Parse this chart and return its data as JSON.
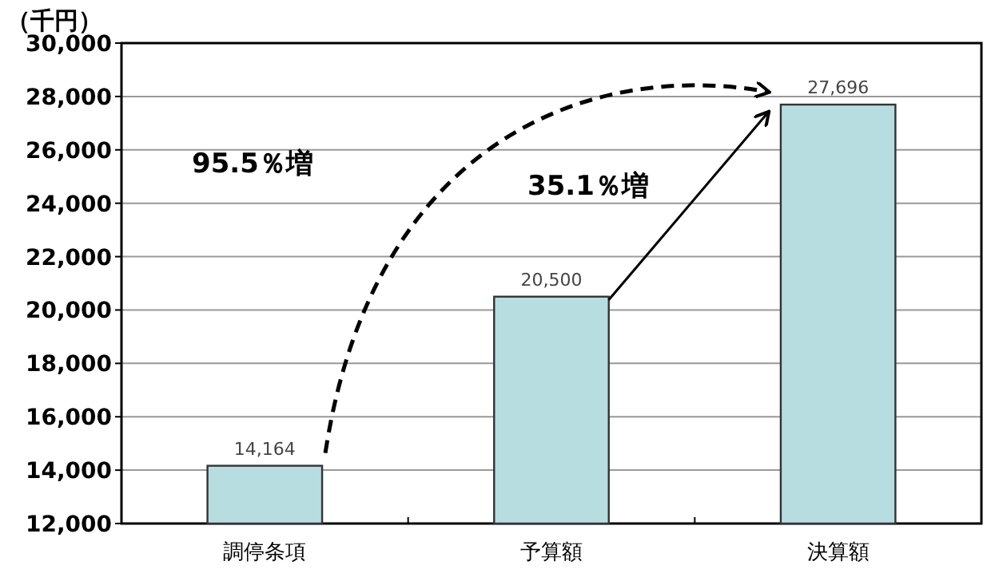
{
  "chart_data": {
    "type": "bar",
    "ylabel": "（千円）",
    "categories": [
      "調停条項",
      "予算額",
      "決算額"
    ],
    "values": [
      14164,
      20500,
      27696
    ],
    "color": "#b7dde0",
    "value_labels": [
      "14,164",
      "20,500",
      "27,696"
    ],
    "ylim": [
      12000,
      30000
    ],
    "yticks": [
      {
        "value": 12000,
        "label": "12,000"
      },
      {
        "value": 14000,
        "label": "14,000"
      },
      {
        "value": 16000,
        "label": "16,000"
      },
      {
        "value": 18000,
        "label": "18,000"
      },
      {
        "value": 20000,
        "label": "20,000"
      },
      {
        "value": 22000,
        "label": "22,000"
      },
      {
        "value": 24000,
        "label": "24,000"
      },
      {
        "value": 26000,
        "label": "26,000"
      },
      {
        "value": 28000,
        "label": "28,000"
      },
      {
        "value": 30000,
        "label": "30,000"
      }
    ],
    "grid": "y",
    "annotations": [
      "95.5％増",
      "35.1％増"
    ]
  }
}
